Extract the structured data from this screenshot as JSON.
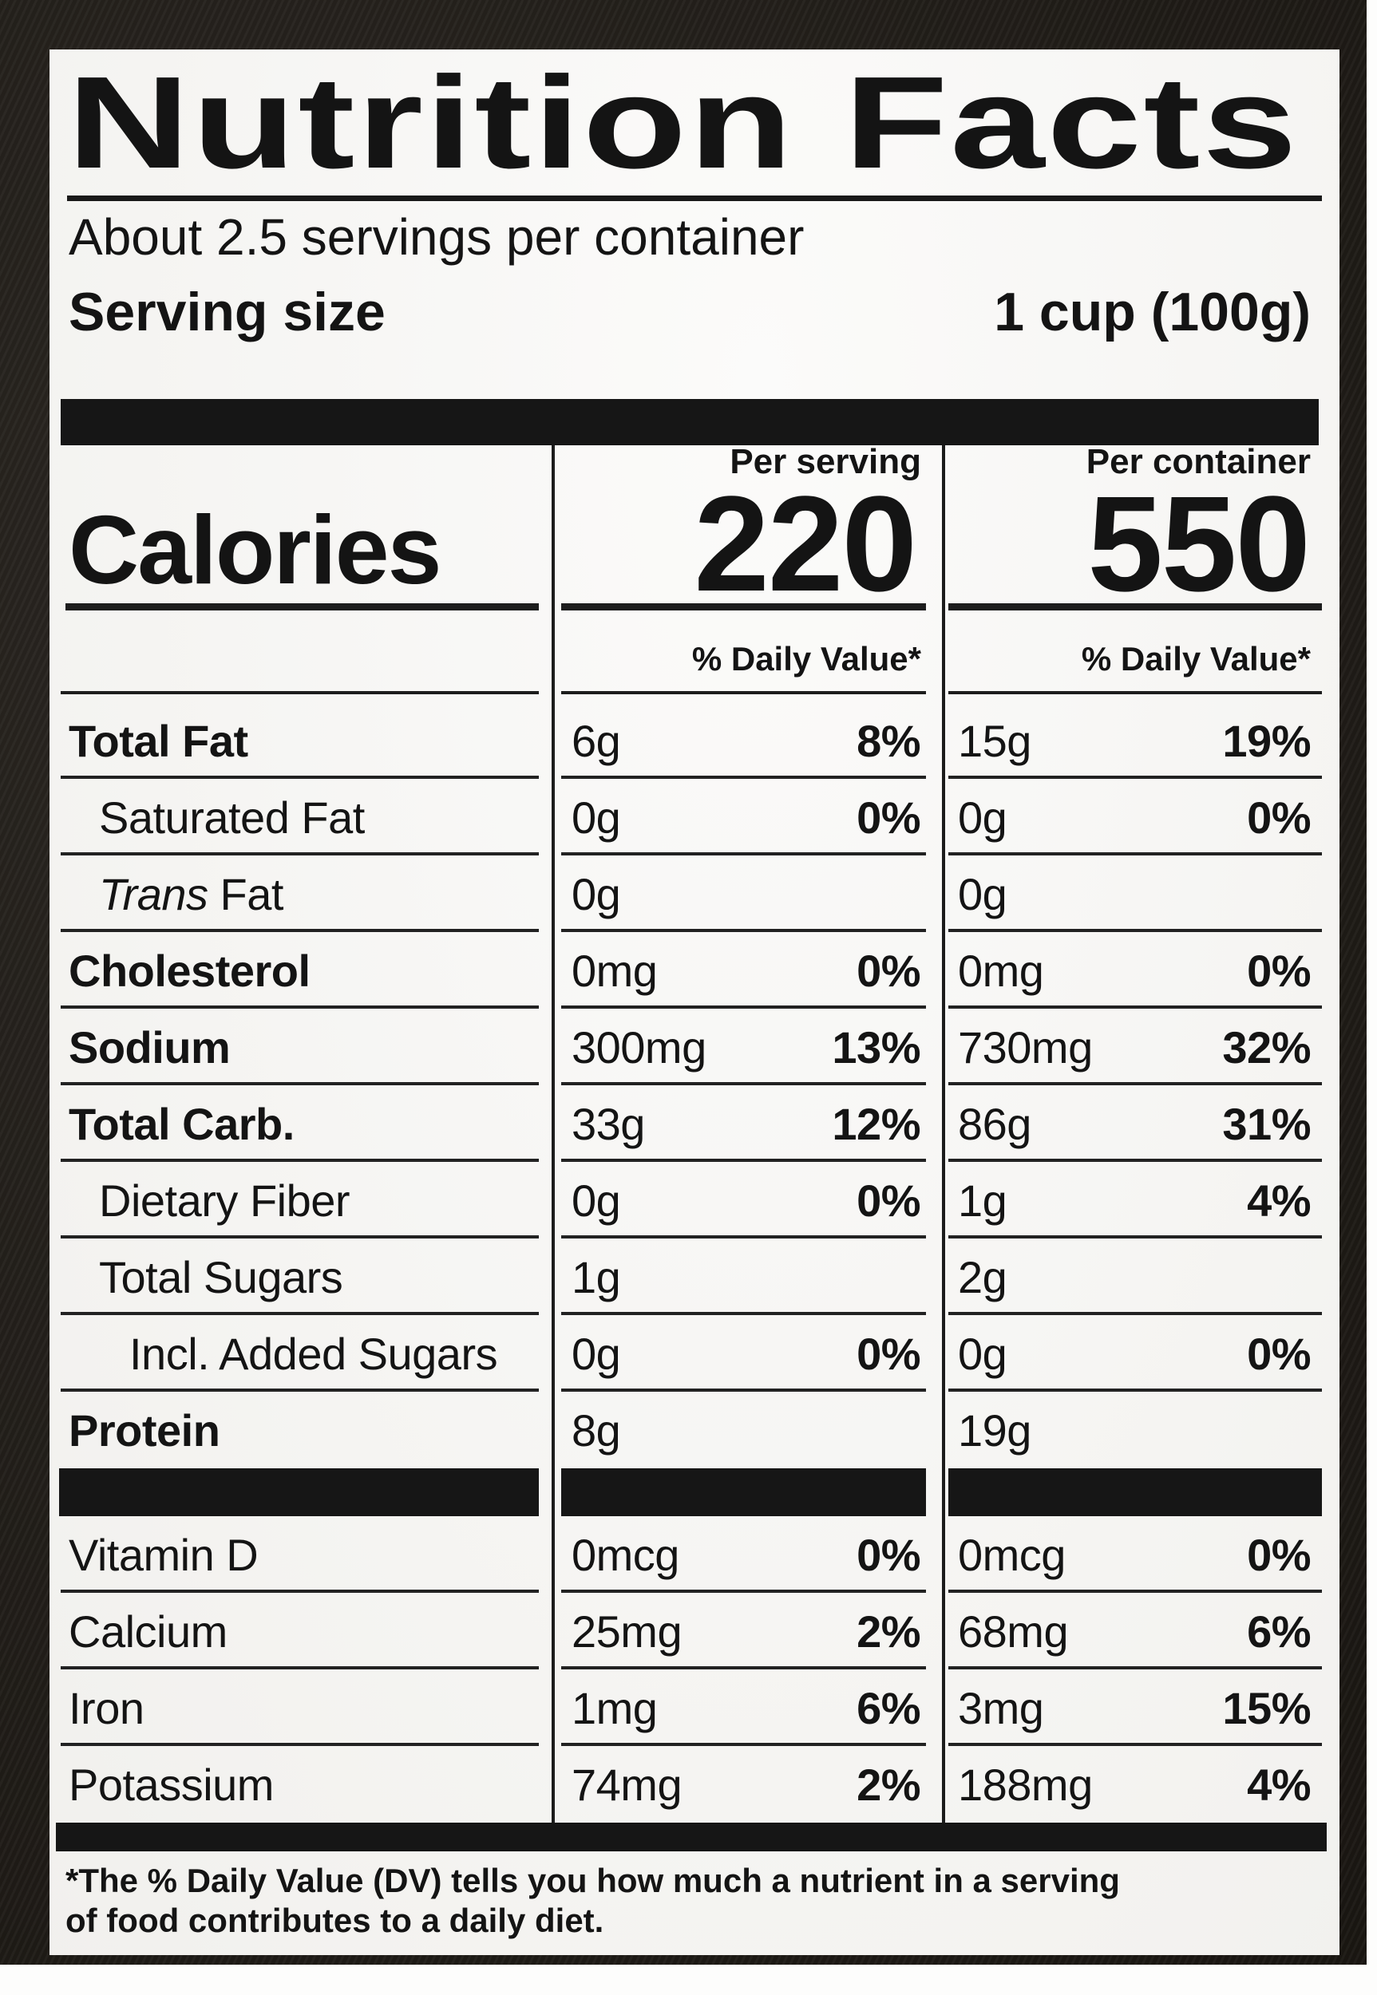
{
  "label": {
    "title": "Nutrition Facts",
    "servings_per_container": "About 2.5 servings per container",
    "serving_size_label": "Serving size",
    "serving_size_value": "1 cup (100g)",
    "column_headers": {
      "per_serving": "Per serving",
      "per_container": "Per container"
    },
    "calories": {
      "label": "Calories",
      "per_serving": "220",
      "per_container": "550"
    },
    "daily_value_header": "% Daily Value*",
    "rows": [
      {
        "name": "Total Fat",
        "indent": 0,
        "bold": true,
        "serving_amount": "6g",
        "serving_dv": "8%",
        "container_amount": "15g",
        "container_dv": "19%"
      },
      {
        "name": "Saturated Fat",
        "indent": 1,
        "bold": false,
        "serving_amount": "0g",
        "serving_dv": "0%",
        "container_amount": "0g",
        "container_dv": "0%"
      },
      {
        "name_italic": "Trans",
        "name": " Fat",
        "indent": 1,
        "bold": false,
        "serving_amount": "0g",
        "serving_dv": "",
        "container_amount": "0g",
        "container_dv": ""
      },
      {
        "name": "Cholesterol",
        "indent": 0,
        "bold": true,
        "serving_amount": "0mg",
        "serving_dv": "0%",
        "container_amount": "0mg",
        "container_dv": "0%"
      },
      {
        "name": "Sodium",
        "indent": 0,
        "bold": true,
        "serving_amount": "300mg",
        "serving_dv": "13%",
        "container_amount": "730mg",
        "container_dv": "32%"
      },
      {
        "name": "Total Carb.",
        "indent": 0,
        "bold": true,
        "serving_amount": "33g",
        "serving_dv": "12%",
        "container_amount": "86g",
        "container_dv": "31%"
      },
      {
        "name": "Dietary Fiber",
        "indent": 1,
        "bold": false,
        "serving_amount": "0g",
        "serving_dv": "0%",
        "container_amount": "1g",
        "container_dv": "4%"
      },
      {
        "name": "Total Sugars",
        "indent": 1,
        "bold": false,
        "serving_amount": "1g",
        "serving_dv": "",
        "container_amount": "2g",
        "container_dv": ""
      },
      {
        "name": "Incl. Added Sugars",
        "indent": 2,
        "bold": false,
        "serving_amount": "0g",
        "serving_dv": "0%",
        "container_amount": "0g",
        "container_dv": "0%"
      },
      {
        "name": "Protein",
        "indent": 0,
        "bold": true,
        "serving_amount": "8g",
        "serving_dv": "",
        "container_amount": "19g",
        "container_dv": ""
      },
      {
        "name": "Vitamin D",
        "indent": 0,
        "bold": false,
        "serving_amount": "0mcg",
        "serving_dv": "0%",
        "container_amount": "0mcg",
        "container_dv": "0%"
      },
      {
        "name": "Calcium",
        "indent": 0,
        "bold": false,
        "serving_amount": "25mg",
        "serving_dv": "2%",
        "container_amount": "68mg",
        "container_dv": "6%"
      },
      {
        "name": "Iron",
        "indent": 0,
        "bold": false,
        "serving_amount": "1mg",
        "serving_dv": "6%",
        "container_amount": "3mg",
        "container_dv": "15%"
      },
      {
        "name": "Potassium",
        "indent": 0,
        "bold": false,
        "serving_amount": "74mg",
        "serving_dv": "2%",
        "container_amount": "188mg",
        "container_dv": "4%"
      }
    ],
    "footnote_line1": "*The % Daily Value (DV) tells you how much a nutrient in a serving",
    "footnote_line2": "of food contributes to a daily diet.",
    "colors": {
      "ink": "#141414",
      "label_background": "#f6f5f2",
      "frame_background": "#1d1914"
    }
  }
}
